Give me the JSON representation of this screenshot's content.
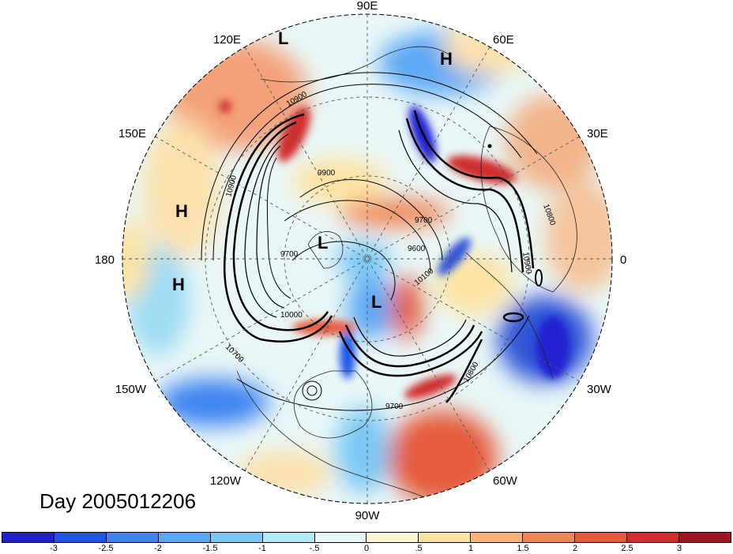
{
  "title_text": "Day 2005012206",
  "longitude_labels": [
    {
      "id": "lon-90e",
      "text": "90E"
    },
    {
      "id": "lon-60e",
      "text": "60E"
    },
    {
      "id": "lon-30e",
      "text": "30E"
    },
    {
      "id": "lon-0",
      "text": "0"
    },
    {
      "id": "lon-30w",
      "text": "30W"
    },
    {
      "id": "lon-60w",
      "text": "60W"
    },
    {
      "id": "lon-90w",
      "text": "90W"
    },
    {
      "id": "lon-120w",
      "text": "120W"
    },
    {
      "id": "lon-150w",
      "text": "150W"
    },
    {
      "id": "lon-180",
      "text": "180"
    },
    {
      "id": "lon-150e",
      "text": "150E"
    },
    {
      "id": "lon-120e",
      "text": "120E"
    }
  ],
  "pressure_centers": [
    {
      "id": "low-120e",
      "text": "L"
    },
    {
      "id": "high-60e",
      "text": "H"
    },
    {
      "id": "high-180-north",
      "text": "H"
    },
    {
      "id": "high-180-south",
      "text": "H"
    },
    {
      "id": "low-central",
      "text": "L"
    },
    {
      "id": "low-pole",
      "text": "L"
    }
  ],
  "contour_labels": [
    "10900",
    "9900",
    "10900",
    "9700",
    "9600",
    "10100",
    "9700",
    "10000",
    "10700",
    "10800",
    "10900",
    "10800",
    "9700"
  ],
  "colorbar": {
    "colors": [
      "#2020d0",
      "#1f55ea",
      "#3d84f2",
      "#5aa7f5",
      "#7cc9f5",
      "#b1ebf7",
      "#e6f8f7",
      "#fff6d6",
      "#fde3a3",
      "#f9b27a",
      "#f08656",
      "#e65b3d",
      "#cf2e2d",
      "#a01422"
    ],
    "tick_labels": [
      "-3",
      "-2.5",
      "-2",
      "-1.5",
      "-1",
      "-.5",
      "0",
      ".5",
      "1",
      "1.5",
      "2",
      "2.5",
      "3"
    ]
  }
}
